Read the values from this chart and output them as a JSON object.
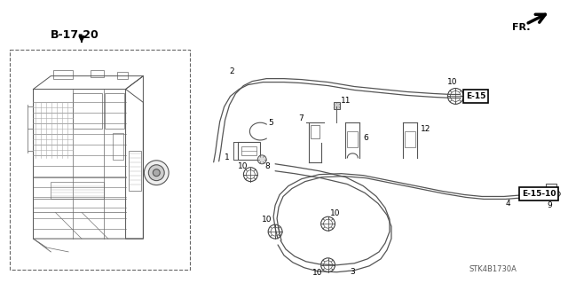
{
  "bg_color": "#ffffff",
  "line_color": "#333333",
  "fig_width": 6.4,
  "fig_height": 3.19,
  "dpi": 100,
  "watermark": "STK4B1730A",
  "ref_label_b": "B-17-20",
  "ref_label_e15": "E-15",
  "ref_label_e1510": "E-15-10",
  "fr_label": "FR.",
  "hose_lw": 1.0,
  "thin_lw": 0.7,
  "label_fs": 6.5,
  "bold_fs": 8.0
}
